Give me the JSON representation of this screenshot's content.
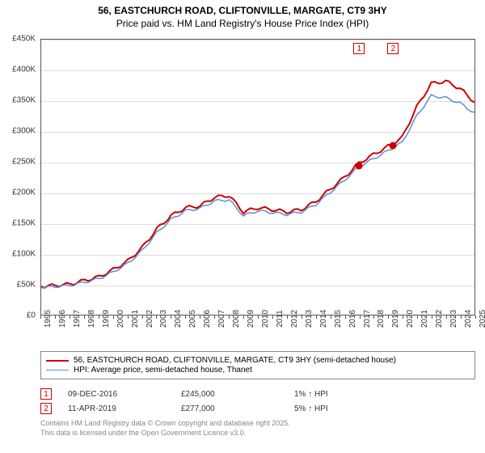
{
  "title": {
    "line1": "56, EASTCHURCH ROAD, CLIFTONVILLE, MARGATE, CT9 3HY",
    "line2": "Price paid vs. HM Land Registry's House Price Index (HPI)",
    "fontsize": 12,
    "color": "#000000"
  },
  "chart": {
    "type": "line",
    "background_color": "#ffffff",
    "border_color": "#555555",
    "grid_color": "#dddddd",
    "y_axis": {
      "min": 0,
      "max": 450000,
      "tick_step": 50000,
      "ticks": [
        "£0",
        "£50K",
        "£100K",
        "£150K",
        "£200K",
        "£250K",
        "£300K",
        "£350K",
        "£400K",
        "£450K"
      ],
      "label_fontsize": 10,
      "label_color": "#333333"
    },
    "x_axis": {
      "min": 1995,
      "max": 2025,
      "ticks": [
        "1995",
        "1996",
        "1997",
        "1998",
        "1999",
        "2000",
        "2001",
        "2002",
        "2003",
        "2004",
        "2005",
        "2006",
        "2007",
        "2008",
        "2009",
        "2010",
        "2011",
        "2012",
        "2013",
        "2014",
        "2015",
        "2016",
        "2017",
        "2018",
        "2019",
        "2020",
        "2021",
        "2022",
        "2023",
        "2024",
        "2025"
      ],
      "label_fontsize": 10,
      "label_color": "#333333",
      "rotation": -90
    },
    "series": [
      {
        "name": "56, EASTCHURCH ROAD, CLIFTONVILLE, MARGATE, CT9 3HY (semi-detached house)",
        "color": "#cc0000",
        "line_width": 2,
        "x": [
          1995,
          1996,
          1997,
          1998,
          1999,
          2000,
          2001,
          2002,
          2003,
          2004,
          2005,
          2006,
          2007,
          2008,
          2009,
          2010,
          2011,
          2012,
          2013,
          2014,
          2015,
          2016,
          2017,
          2018,
          2019,
          2020,
          2021,
          2022,
          2023,
          2024,
          2025
        ],
        "y": [
          46000,
          48000,
          50000,
          56000,
          62000,
          74000,
          88000,
          110000,
          140000,
          162000,
          175000,
          178000,
          192000,
          195000,
          168000,
          175000,
          172000,
          168000,
          172000,
          185000,
          205000,
          225000,
          248000,
          262000,
          275000,
          290000,
          340000,
          378000,
          382000,
          370000,
          348000
        ]
      },
      {
        "name": "HPI: Average price, semi-detached house, Thanet",
        "color": "#5b8fd6",
        "line_width": 1.5,
        "x": [
          1995,
          1996,
          1997,
          1998,
          1999,
          2000,
          2001,
          2002,
          2003,
          2004,
          2005,
          2006,
          2007,
          2008,
          2009,
          2010,
          2011,
          2012,
          2013,
          2014,
          2015,
          2016,
          2017,
          2018,
          2019,
          2020,
          2021,
          2022,
          2023,
          2024,
          2025
        ],
        "y": [
          44000,
          46000,
          48000,
          53000,
          59000,
          70000,
          84000,
          105000,
          134000,
          156000,
          170000,
          174000,
          186000,
          188000,
          162000,
          170000,
          167000,
          164000,
          168000,
          180000,
          200000,
          220000,
          242000,
          255000,
          268000,
          282000,
          325000,
          358000,
          355000,
          346000,
          330000
        ]
      }
    ],
    "markers": [
      {
        "label": "1",
        "x": 2016.94,
        "y": 245000,
        "color": "#cc0000"
      },
      {
        "label": "2",
        "x": 2019.28,
        "y": 277000,
        "color": "#cc0000"
      }
    ]
  },
  "legend": {
    "border_color": "#888888",
    "fontsize": 10,
    "items": [
      {
        "color": "#cc0000",
        "width": 2,
        "label": "56, EASTCHURCH ROAD, CLIFTONVILLE, MARGATE, CT9 3HY (semi-detached house)"
      },
      {
        "color": "#5b8fd6",
        "width": 1.5,
        "label": "HPI: Average price, semi-detached house, Thanet"
      }
    ]
  },
  "transactions": [
    {
      "marker": "1",
      "date": "09-DEC-2016",
      "price": "£245,000",
      "change": "1% ↑ HPI"
    },
    {
      "marker": "2",
      "date": "11-APR-2019",
      "price": "£277,000",
      "change": "5% ↑ HPI"
    }
  ],
  "footer": {
    "line1": "Contains HM Land Registry data © Crown copyright and database right 2025.",
    "line2": "This data is licensed under the Open Government Licence v3.0.",
    "color": "#888888",
    "fontsize": 9
  }
}
